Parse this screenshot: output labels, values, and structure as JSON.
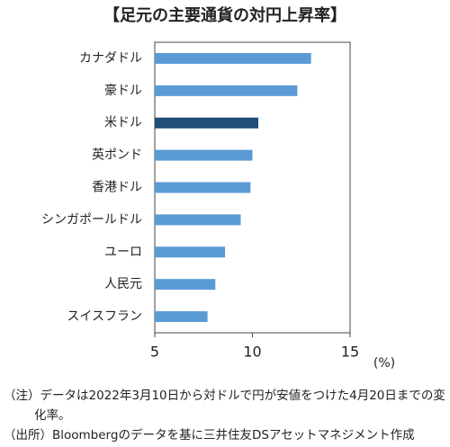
{
  "chart_data": {
    "type": "barh",
    "title": "【足元の主要通貨の対円上昇率】",
    "categories": [
      "カナダドル",
      "豪ドル",
      "米ドル",
      "英ポンド",
      "香港ドル",
      "シンガポールドル",
      "ユーロ",
      "人民元",
      "スイスフラン"
    ],
    "values": [
      13.0,
      12.3,
      10.3,
      10.0,
      9.9,
      9.4,
      8.6,
      8.1,
      7.7
    ],
    "colors": [
      "#5b9bd5",
      "#5b9bd5",
      "#1f4e79",
      "#5b9bd5",
      "#5b9bd5",
      "#5b9bd5",
      "#5b9bd5",
      "#5b9bd5",
      "#5b9bd5"
    ],
    "xlabel": "(%)",
    "xlim": [
      5,
      15
    ],
    "xticks": [
      5,
      10,
      15
    ],
    "grid": false,
    "notes": [
      "（注）データは2022年3月10日から対ドルで円が安値をつけた4月20日までの変化率。",
      "（出所）Bloombergのデータを基に三井住友DSアセットマネジメント作成"
    ]
  }
}
